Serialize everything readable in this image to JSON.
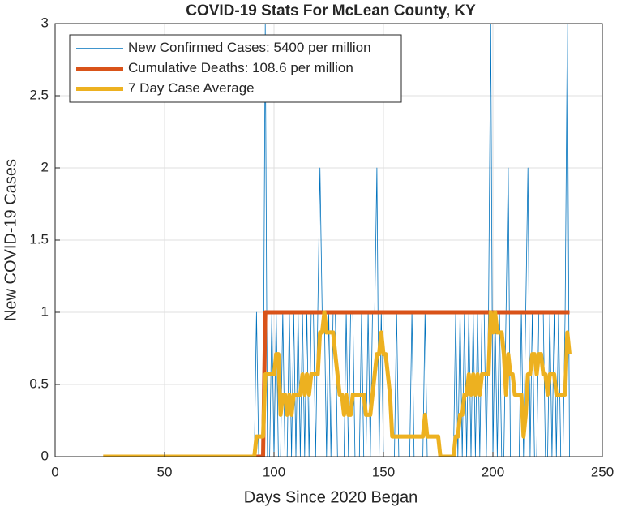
{
  "chart_data": {
    "type": "line",
    "title": "COVID-19 Stats For McLean County, KY",
    "xlabel": "Days Since 2020 Began",
    "ylabel": "New COVID-19 Cases",
    "xlim": [
      0,
      250
    ],
    "xticks": [
      0,
      50,
      100,
      150,
      200,
      250
    ],
    "ylim": [
      0,
      3
    ],
    "yticks": [
      0,
      0.5,
      1,
      1.5,
      2,
      2.5,
      3
    ],
    "grid": true,
    "legend_location": "northwest",
    "x": [
      22,
      23,
      24,
      25,
      26,
      27,
      28,
      29,
      30,
      31,
      32,
      33,
      34,
      35,
      36,
      37,
      38,
      39,
      40,
      41,
      42,
      43,
      44,
      45,
      46,
      47,
      48,
      49,
      50,
      51,
      52,
      53,
      54,
      55,
      56,
      57,
      58,
      59,
      60,
      61,
      62,
      63,
      64,
      65,
      66,
      67,
      68,
      69,
      70,
      71,
      72,
      73,
      74,
      75,
      76,
      77,
      78,
      79,
      80,
      81,
      82,
      83,
      84,
      85,
      86,
      87,
      88,
      89,
      90,
      91,
      92,
      93,
      94,
      95,
      96,
      97,
      98,
      99,
      100,
      101,
      102,
      103,
      104,
      105,
      106,
      107,
      108,
      109,
      110,
      111,
      112,
      113,
      114,
      115,
      116,
      117,
      118,
      119,
      120,
      121,
      122,
      123,
      124,
      125,
      126,
      127,
      128,
      129,
      130,
      131,
      132,
      133,
      134,
      135,
      136,
      137,
      138,
      139,
      140,
      141,
      142,
      143,
      144,
      145,
      146,
      147,
      148,
      149,
      150,
      151,
      152,
      153,
      154,
      155,
      156,
      157,
      158,
      159,
      160,
      161,
      162,
      163,
      164,
      165,
      166,
      167,
      168,
      169,
      170,
      171,
      172,
      173,
      174,
      175,
      176,
      177,
      178,
      179,
      180,
      181,
      182,
      183,
      184,
      185,
      186,
      187,
      188,
      189,
      190,
      191,
      192,
      193,
      194,
      195,
      196,
      197,
      198,
      199,
      200,
      201,
      202,
      203,
      204,
      205,
      206,
      207,
      208,
      209,
      210,
      211,
      212,
      213,
      214,
      215,
      216,
      217,
      218,
      219,
      220,
      221,
      222,
      223,
      224,
      225,
      226,
      227,
      228,
      229,
      230,
      231,
      232,
      233,
      234,
      235
    ],
    "series": [
      {
        "name": "New Confirmed Cases: 5400 per million",
        "color": "#0072BD",
        "width": 0.8,
        "values": [
          0,
          0,
          0,
          0,
          0,
          0,
          0,
          0,
          0,
          0,
          0,
          0,
          0,
          0,
          0,
          0,
          0,
          0,
          0,
          0,
          0,
          0,
          0,
          0,
          0,
          0,
          0,
          0,
          0,
          0,
          0,
          0,
          0,
          0,
          0,
          0,
          0,
          0,
          0,
          0,
          0,
          0,
          0,
          0,
          0,
          0,
          0,
          0,
          0,
          0,
          0,
          0,
          0,
          0,
          0,
          0,
          0,
          0,
          0,
          0,
          0,
          0,
          0,
          0,
          0,
          0,
          0,
          0,
          0,
          0,
          1,
          0,
          0,
          0,
          3,
          0,
          0,
          1,
          0,
          1,
          0,
          0,
          1,
          0,
          0,
          1,
          0,
          1,
          0,
          1,
          0,
          1,
          0,
          1,
          0,
          1,
          1,
          0,
          1,
          2,
          1,
          1,
          0,
          1,
          0,
          1,
          1,
          0,
          0,
          0,
          0,
          1,
          0,
          1,
          1,
          0,
          0,
          0,
          1,
          0,
          0,
          1,
          0,
          1,
          1,
          2,
          0,
          1,
          0,
          0,
          0,
          0,
          0,
          0,
          1,
          0,
          0,
          0,
          0,
          0,
          0,
          1,
          0,
          0,
          0,
          0,
          0,
          1,
          0,
          0,
          0,
          0,
          0,
          0,
          0,
          0,
          0,
          0,
          0,
          0,
          0,
          1,
          0,
          1,
          0,
          1,
          0,
          1,
          0,
          1,
          0,
          1,
          0,
          1,
          1,
          0,
          1,
          3,
          0,
          1,
          0,
          1,
          0,
          0,
          1,
          2,
          0,
          0,
          0,
          0,
          0,
          1,
          0,
          1,
          2,
          0,
          1,
          0,
          0,
          1,
          1,
          1,
          0,
          0,
          1,
          0,
          1,
          0,
          1,
          0,
          0,
          1,
          3,
          0
        ]
      },
      {
        "name": "Cumulative Deaths: 108.6 per million",
        "color": "#D95319",
        "width": 5,
        "values": [
          0,
          0,
          0,
          0,
          0,
          0,
          0,
          0,
          0,
          0,
          0,
          0,
          0,
          0,
          0,
          0,
          0,
          0,
          0,
          0,
          0,
          0,
          0,
          0,
          0,
          0,
          0,
          0,
          0,
          0,
          0,
          0,
          0,
          0,
          0,
          0,
          0,
          0,
          0,
          0,
          0,
          0,
          0,
          0,
          0,
          0,
          0,
          0,
          0,
          0,
          0,
          0,
          0,
          0,
          0,
          0,
          0,
          0,
          0,
          0,
          0,
          0,
          0,
          0,
          0,
          0,
          0,
          0,
          0,
          0,
          0,
          0,
          0,
          0,
          1,
          1,
          1,
          1,
          1,
          1,
          1,
          1,
          1,
          1,
          1,
          1,
          1,
          1,
          1,
          1,
          1,
          1,
          1,
          1,
          1,
          1,
          1,
          1,
          1,
          1,
          1,
          1,
          1,
          1,
          1,
          1,
          1,
          1,
          1,
          1,
          1,
          1,
          1,
          1,
          1,
          1,
          1,
          1,
          1,
          1,
          1,
          1,
          1,
          1,
          1,
          1,
          1,
          1,
          1,
          1,
          1,
          1,
          1,
          1,
          1,
          1,
          1,
          1,
          1,
          1,
          1,
          1,
          1,
          1,
          1,
          1,
          1,
          1,
          1,
          1,
          1,
          1,
          1,
          1,
          1,
          1,
          1,
          1,
          1,
          1,
          1,
          1,
          1,
          1,
          1,
          1,
          1,
          1,
          1,
          1,
          1,
          1,
          1,
          1,
          1,
          1,
          1,
          1,
          1,
          1,
          1,
          1,
          1,
          1,
          1,
          1,
          1,
          1,
          1,
          1,
          1,
          1,
          1,
          1,
          1,
          1,
          1,
          1,
          1,
          1,
          1,
          1,
          1,
          1,
          1,
          1,
          1,
          1,
          1,
          1,
          1,
          1,
          1,
          1
        ]
      },
      {
        "name": "7 Day Case Average",
        "color": "#EDB120",
        "width": 5,
        "values": [
          0,
          0,
          0,
          0,
          0,
          0,
          0,
          0,
          0,
          0,
          0,
          0,
          0,
          0,
          0,
          0,
          0,
          0,
          0,
          0,
          0,
          0,
          0,
          0,
          0,
          0,
          0,
          0,
          0,
          0,
          0,
          0,
          0,
          0,
          0,
          0,
          0,
          0,
          0,
          0,
          0,
          0,
          0,
          0,
          0,
          0,
          0,
          0,
          0,
          0,
          0,
          0,
          0,
          0,
          0,
          0,
          0,
          0,
          0,
          0,
          0,
          0,
          0,
          0,
          0,
          0,
          0,
          0,
          0,
          0,
          0.14,
          0.14,
          0.14,
          0.14,
          0.57,
          0.57,
          0.57,
          0.57,
          0.57,
          0.71,
          0.71,
          0.29,
          0.43,
          0.43,
          0.29,
          0.43,
          0.29,
          0.43,
          0.43,
          0.43,
          0.43,
          0.57,
          0.43,
          0.57,
          0.43,
          0.57,
          0.57,
          0.57,
          0.57,
          0.86,
          0.86,
          1,
          0.86,
          0.86,
          0.86,
          0.86,
          0.71,
          0.57,
          0.43,
          0.43,
          0.29,
          0.43,
          0.29,
          0.29,
          0.43,
          0.43,
          0.43,
          0.43,
          0.43,
          0.43,
          0.29,
          0.29,
          0.29,
          0.43,
          0.57,
          0.71,
          0.71,
          0.86,
          0.71,
          0.71,
          0.57,
          0.43,
          0.14,
          0.14,
          0.14,
          0.14,
          0.14,
          0.14,
          0.14,
          0.14,
          0.14,
          0.14,
          0.14,
          0.14,
          0.14,
          0.14,
          0.14,
          0.29,
          0.14,
          0.14,
          0.14,
          0.14,
          0.14,
          0.14,
          0,
          0,
          0,
          0,
          0,
          0,
          0,
          0.14,
          0.14,
          0.29,
          0.29,
          0.43,
          0.43,
          0.57,
          0.43,
          0.57,
          0.43,
          0.57,
          0.43,
          0.57,
          0.57,
          0.57,
          0.57,
          1,
          0.86,
          1,
          0.86,
          0.86,
          0.86,
          0.71,
          0.43,
          0.71,
          0.57,
          0.57,
          0.43,
          0.43,
          0.43,
          0.43,
          0.14,
          0.29,
          0.57,
          0.57,
          0.71,
          0.71,
          0.57,
          0.71,
          0.71,
          0.57,
          0.57,
          0.43,
          0.57,
          0.57,
          0.57,
          0.43,
          0.43,
          0.43,
          0.43,
          0.43,
          0.86,
          0.71
        ]
      }
    ]
  }
}
